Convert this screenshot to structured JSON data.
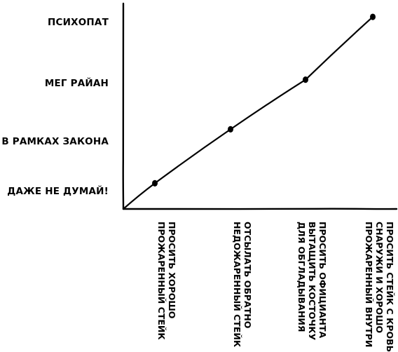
{
  "chart_data": {
    "type": "line",
    "title": "",
    "xlabel": "",
    "ylabel": "",
    "x": [
      [
        "ПРОСИТЬ ХОРОШО",
        "ПРОЖАРЕННЫЙ СТЕЙК"
      ],
      [
        "ОТСЫЛАТЬ ОБРАТНО",
        "НЕДОЖАРЕННЫЙ СТЕЙК"
      ],
      [
        "ПРОСИТЬ ОФИЦИАНТА",
        "ВЫТАЩИТЬ КОСТОЧКУ",
        "ДЛЯ ОБГЛАДЫВАНИЯ"
      ],
      [
        "ПРОСИТЬ СТЕЙК С КРОВЬЮ",
        "СНАРУЖИ И ХОРОШО",
        "ПРОЖАРЕННЫЙ ВНУТРИ"
      ]
    ],
    "y_categories": [
      "ДАЖЕ НЕ ДУМАЙ!",
      "В РАМКАХ ЗАКОНА",
      "МЕГ РАЙАН",
      "ПСИХОПАТ"
    ],
    "series": [
      {
        "values": [
          0.15,
          1.2,
          2.05,
          3.08
        ]
      }
    ],
    "ylim": [
      -0.2,
      3.2
    ],
    "grid": false
  }
}
